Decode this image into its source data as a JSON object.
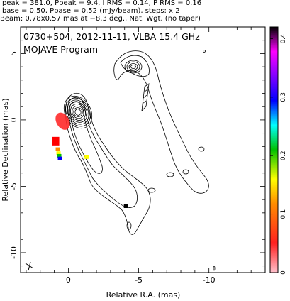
{
  "header": {
    "line1": "Ipeak = 381.0, Ppeak = 9.4, I RMS = 0.14, P RMS = 0.16",
    "line2": "Ibase = 0.50, Pbase = 0.52 (mJy/beam), steps: x 2",
    "line3": "Beam: 0.78x0.57 mas at −8.3 deg., Nat. Wgt. (no taper)"
  },
  "chart_data": {
    "type": "contour",
    "title": "0730+504, 2012-11-11, VLBA 15.4 GHz",
    "subtitle": "MOJAVE Program",
    "xlabel": "Relative R.A. (mas)",
    "ylabel": "Relative Declination (mas)",
    "xlim": [
      3.4,
      -14.0
    ],
    "ylim": [
      -11.5,
      7.0
    ],
    "x_ticks": [
      0,
      -5,
      -10
    ],
    "y_ticks": [
      5,
      0,
      -5,
      -10
    ],
    "colorbar": {
      "ticks": [
        0,
        0.1,
        0.2,
        0.3,
        0.4
      ],
      "range": [
        0,
        0.42
      ],
      "colormap": [
        "#ffc0cb",
        "#ff0000",
        "#ff8c00",
        "#ffff00",
        "#00c000",
        "#00ffff",
        "#0000ff",
        "#8000ff",
        "#ff00ff",
        "#000000"
      ]
    },
    "core_position": [
      0,
      0
    ],
    "polarization_spots": [
      {
        "x": 0.5,
        "y": -0.1,
        "color": "#ff0000"
      },
      {
        "x": 0.9,
        "y": -1.6,
        "color": "#ff0000"
      },
      {
        "x": 0.75,
        "y": -2.2,
        "color": "#ff8c00"
      },
      {
        "x": 0.7,
        "y": -2.5,
        "color": "#ffff00"
      },
      {
        "x": 0.65,
        "y": -2.7,
        "color": "#00c000"
      },
      {
        "x": 0.6,
        "y": -2.9,
        "color": "#0000ff"
      },
      {
        "x": -1.3,
        "y": -2.8,
        "color": "#ffff00"
      },
      {
        "x": -4.1,
        "y": -6.5,
        "color": "#000000"
      }
    ],
    "beam": {
      "major": 0.78,
      "minor": 0.57,
      "pa": -8.3
    }
  }
}
